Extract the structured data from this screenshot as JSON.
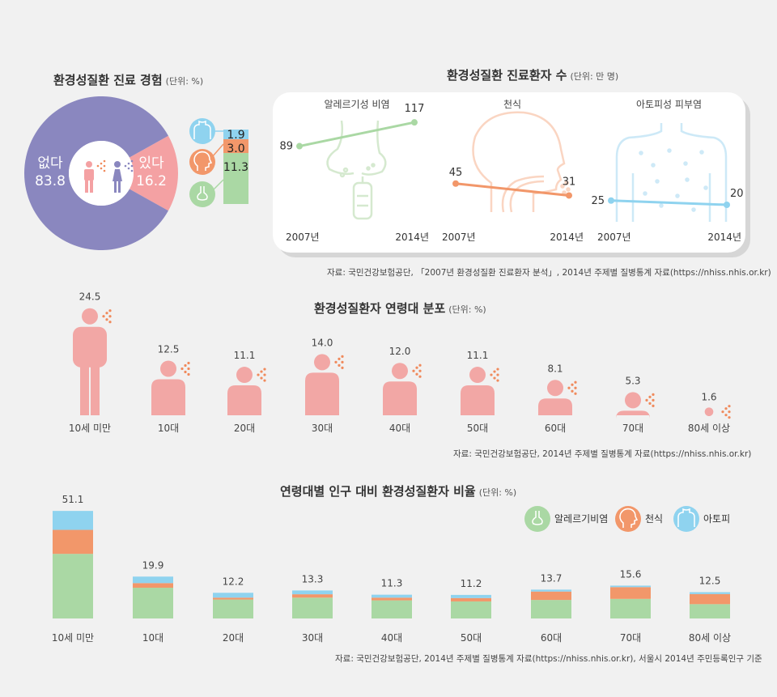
{
  "colors": {
    "background": "#f1f1f1",
    "none": "#8a87bf",
    "yes": "#f4a1a3",
    "atopy": "#8fd3ef",
    "asthma": "#f2976a",
    "rhinitis": "#aad8a4",
    "figure": "#f2a7a5",
    "spray": "#f08a5c"
  },
  "icons": [
    "male-icon",
    "female-icon",
    "torso-icon",
    "head-icon",
    "nose-icon",
    "person-icon",
    "spray-icon"
  ],
  "section1": {
    "title": "환경성질환 진료 경험",
    "unit": "(단위: %)",
    "labels": {
      "none": "없다",
      "yes": "있다"
    }
  },
  "section2": {
    "title": "환경성질환 진료환자 수",
    "unit": "(단위: 만 명)",
    "source": "자료: 국민건강보험공단, 「2007년 환경성질환 진료환자 분석」, 2014년 주제별 질병통계 자료(https://nhiss.nhis.or.kr)"
  },
  "section3": {
    "title": "환경성질환자 연령대 분포",
    "unit": "(단위: %)",
    "source": "자료: 국민건강보험공단, 2014년 주제별 질병통계 자료(https://nhiss.nhis.or.kr)"
  },
  "section4": {
    "title": "연령대별 인구 대비 환경성질환자 비율",
    "unit": "(단위: %)",
    "source": "자료: 국민건강보험공단, 2014년 주제별 질병통계 자료(https://nhiss.nhis.or.kr), 서울시 2014년 주민등록인구 기준",
    "legend": [
      "알레르기비염",
      "천식",
      "아토피"
    ]
  },
  "chart_data": [
    {
      "type": "pie",
      "title": "환경성질환 진료 경험",
      "slices": [
        {
          "label": "없다",
          "value": 83.8
        },
        {
          "label": "있다",
          "value": 16.2
        }
      ],
      "breakdown_of": "있다",
      "breakdown": [
        {
          "name": "아토피",
          "value": 1.9
        },
        {
          "name": "천식",
          "value": 3.0
        },
        {
          "name": "알레르기비염",
          "value": 11.3
        }
      ]
    },
    {
      "type": "line",
      "title": "환경성질환 진료환자 수",
      "panels": [
        {
          "name": "알레르기성 비염",
          "x": [
            "2007년",
            "2014년"
          ],
          "values": [
            89,
            117
          ]
        },
        {
          "name": "천식",
          "x": [
            "2007년",
            "2014년"
          ],
          "values": [
            45,
            31
          ]
        },
        {
          "name": "아토피성 피부염",
          "x": [
            "2007년",
            "2014년"
          ],
          "values": [
            25,
            20
          ]
        }
      ]
    },
    {
      "type": "bar",
      "title": "환경성질환자 연령대 분포",
      "categories": [
        "10세 미만",
        "10대",
        "20대",
        "30대",
        "40대",
        "50대",
        "60대",
        "70대",
        "80세 이상"
      ],
      "values": [
        24.5,
        12.5,
        11.1,
        14.0,
        12.0,
        11.1,
        8.1,
        5.3,
        1.6
      ]
    },
    {
      "type": "bar",
      "stacked": true,
      "title": "연령대별 인구 대비 환경성질환자 비율",
      "categories": [
        "10세 미만",
        "10대",
        "20대",
        "30대",
        "40대",
        "50대",
        "60대",
        "70대",
        "80세 이상"
      ],
      "totals": [
        51.1,
        19.9,
        12.2,
        13.3,
        11.3,
        11.2,
        13.7,
        15.6,
        12.5
      ],
      "series": [
        {
          "name": "알레르기비염",
          "values": [
            30.7,
            14.6,
            9.0,
            9.9,
            8.6,
            8.1,
            8.8,
            9.3,
            6.8
          ]
        },
        {
          "name": "천식",
          "values": [
            11.4,
            2.2,
            0.9,
            1.6,
            1.3,
            1.6,
            4.0,
            5.6,
            4.8
          ]
        },
        {
          "name": "아토피",
          "values": [
            9.0,
            3.1,
            2.3,
            1.8,
            1.4,
            1.5,
            0.9,
            0.7,
            0.9
          ]
        }
      ]
    }
  ]
}
